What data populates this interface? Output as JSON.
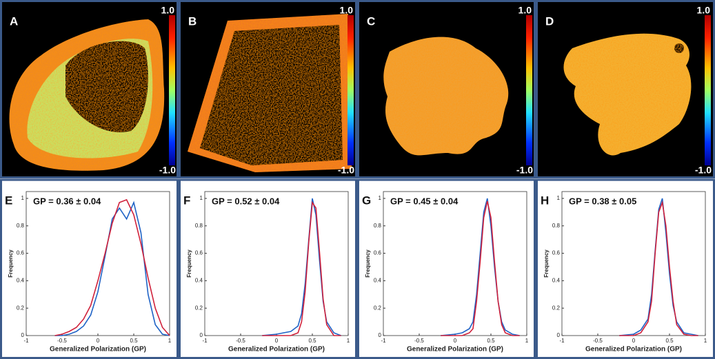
{
  "images": [
    {
      "label": "A",
      "scale_max": "1.0",
      "scale_min": "-1.0"
    },
    {
      "label": "B",
      "scale_max": "1.0",
      "scale_min": "-1.0"
    },
    {
      "label": "C",
      "scale_max": "1.0",
      "scale_min": "-1.0"
    },
    {
      "label": "D",
      "scale_max": "1.0",
      "scale_min": "-1.0"
    }
  ],
  "chart_data": [
    {
      "type": "line",
      "panel_label": "E",
      "annotation": "GP = 0.36 ± 0.04",
      "xlabel": "Generalized Polarization (GP)",
      "ylabel": "Frequency",
      "xlim": [
        -1,
        1
      ],
      "xticks": [
        -1,
        -0.5,
        0,
        0.5,
        1
      ],
      "ylim": [
        0,
        1.05
      ],
      "yticks": [
        0,
        0.2,
        0.4,
        0.6,
        0.8,
        1
      ],
      "x": [
        -0.6,
        -0.5,
        -0.4,
        -0.3,
        -0.2,
        -0.1,
        0,
        0.1,
        0.2,
        0.3,
        0.4,
        0.5,
        0.6,
        0.7,
        0.8,
        0.9,
        1.0
      ],
      "series": [
        {
          "color": "#1f63c6",
          "values": [
            0,
            0,
            0.01,
            0.03,
            0.07,
            0.15,
            0.32,
            0.58,
            0.85,
            0.93,
            0.85,
            0.97,
            0.75,
            0.3,
            0.08,
            0.01,
            0
          ]
        },
        {
          "color": "#d0203a",
          "values": [
            0,
            0.01,
            0.03,
            0.06,
            0.12,
            0.22,
            0.4,
            0.6,
            0.82,
            0.97,
            0.99,
            0.88,
            0.67,
            0.42,
            0.2,
            0.06,
            0
          ]
        }
      ]
    },
    {
      "type": "line",
      "panel_label": "F",
      "annotation": "GP = 0.52 ± 0.04",
      "xlabel": "Generalized Polarization (GP)",
      "ylabel": "Frequency",
      "xlim": [
        -1,
        1
      ],
      "xticks": [
        -1,
        -0.5,
        0,
        0.5,
        1
      ],
      "ylim": [
        0,
        1.05
      ],
      "yticks": [
        0,
        0.2,
        0.4,
        0.6,
        0.8,
        1
      ],
      "x": [
        -0.2,
        0,
        0.2,
        0.3,
        0.35,
        0.4,
        0.45,
        0.5,
        0.55,
        0.6,
        0.65,
        0.7,
        0.8,
        0.9
      ],
      "series": [
        {
          "color": "#1f63c6",
          "values": [
            0,
            0.01,
            0.03,
            0.07,
            0.16,
            0.38,
            0.7,
            1.0,
            0.88,
            0.55,
            0.25,
            0.1,
            0.02,
            0
          ]
        },
        {
          "color": "#d0203a",
          "values": [
            0,
            0,
            0,
            0.02,
            0.1,
            0.32,
            0.68,
            0.97,
            0.93,
            0.61,
            0.27,
            0.08,
            0,
            0
          ]
        }
      ]
    },
    {
      "type": "line",
      "panel_label": "G",
      "annotation": "GP = 0.45 ± 0.04",
      "xlabel": "Generalized Polarization (GP)",
      "ylabel": "Frequency",
      "xlim": [
        -1,
        1
      ],
      "xticks": [
        -1,
        -0.5,
        0,
        0.5,
        1
      ],
      "ylim": [
        0,
        1.05
      ],
      "yticks": [
        0,
        0.2,
        0.4,
        0.6,
        0.8,
        1
      ],
      "x": [
        -0.2,
        0,
        0.1,
        0.2,
        0.25,
        0.3,
        0.35,
        0.4,
        0.45,
        0.5,
        0.55,
        0.6,
        0.65,
        0.7,
        0.8,
        0.9
      ],
      "series": [
        {
          "color": "#1f63c6",
          "values": [
            0,
            0.01,
            0.02,
            0.05,
            0.1,
            0.3,
            0.6,
            0.9,
            1.0,
            0.8,
            0.5,
            0.25,
            0.1,
            0.04,
            0.01,
            0
          ]
        },
        {
          "color": "#d0203a",
          "values": [
            0,
            0,
            0,
            0.02,
            0.05,
            0.25,
            0.54,
            0.86,
            0.98,
            0.86,
            0.54,
            0.25,
            0.08,
            0.02,
            0,
            0
          ]
        }
      ]
    },
    {
      "type": "line",
      "panel_label": "H",
      "annotation": "GP = 0.38 ± 0.05",
      "xlabel": "Generalized Polarization (GP)",
      "ylabel": "Frequency",
      "xlim": [
        -1,
        1
      ],
      "xticks": [
        -1,
        -0.5,
        0,
        0.5,
        1
      ],
      "ylim": [
        0,
        1.05
      ],
      "yticks": [
        0,
        0.2,
        0.4,
        0.6,
        0.8,
        1
      ],
      "x": [
        -0.2,
        0,
        0.1,
        0.2,
        0.25,
        0.3,
        0.35,
        0.4,
        0.45,
        0.5,
        0.55,
        0.6,
        0.7,
        0.8,
        0.9
      ],
      "series": [
        {
          "color": "#1f63c6",
          "values": [
            0,
            0.01,
            0.04,
            0.12,
            0.3,
            0.62,
            0.92,
            1.0,
            0.75,
            0.45,
            0.22,
            0.1,
            0.02,
            0.01,
            0
          ]
        },
        {
          "color": "#d0203a",
          "values": [
            0,
            0,
            0.02,
            0.1,
            0.25,
            0.6,
            0.9,
            0.97,
            0.8,
            0.5,
            0.25,
            0.08,
            0.01,
            0,
            0
          ]
        }
      ]
    }
  ]
}
